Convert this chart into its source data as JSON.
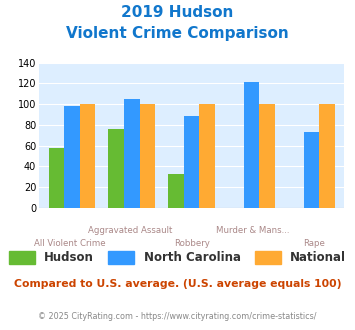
{
  "title_line1": "2019 Hudson",
  "title_line2": "Violent Crime Comparison",
  "categories": [
    "All Violent Crime",
    "Aggravated Assault",
    "Robbery",
    "Murder & Mans...",
    "Rape"
  ],
  "hudson": [
    58,
    76,
    33,
    null,
    null
  ],
  "north_carolina": [
    98,
    105,
    89,
    121,
    73
  ],
  "national": [
    100,
    100,
    100,
    100,
    100
  ],
  "hudson_color": "#66bb33",
  "nc_color": "#3399ff",
  "national_color": "#ffaa33",
  "bg_color": "#ddeeff",
  "ylim": [
    0,
    140
  ],
  "yticks": [
    0,
    20,
    40,
    60,
    80,
    100,
    120,
    140
  ],
  "footnote1": "Compared to U.S. average. (U.S. average equals 100)",
  "footnote2": "© 2025 CityRating.com - https://www.cityrating.com/crime-statistics/",
  "title_color": "#1177cc",
  "footnote1_color": "#cc4400",
  "footnote2_color": "#888888",
  "label_top": [
    [
      1,
      "Aggravated Assault"
    ],
    [
      3,
      "Murder & Mans..."
    ]
  ],
  "label_bottom": [
    [
      0,
      "All Violent Crime"
    ],
    [
      2,
      "Robbery"
    ],
    [
      4,
      "Rape"
    ]
  ],
  "label_color": "#aa8888"
}
